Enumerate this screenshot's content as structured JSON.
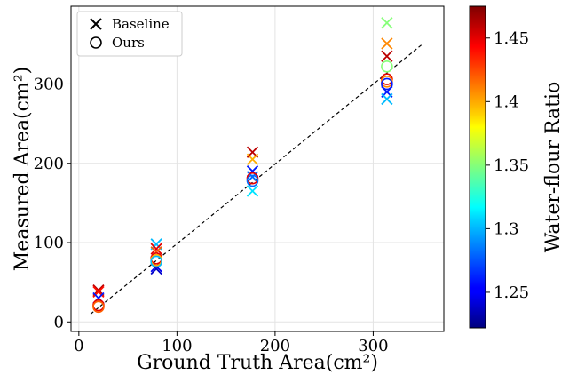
{
  "chart_data": {
    "type": "scatter",
    "xlabel": "Ground Truth Area(cm²)",
    "ylabel": "Measured Area(cm²)",
    "xlim": [
      -8,
      372
    ],
    "ylim": [
      -12,
      398
    ],
    "x_ticks": [
      0,
      100,
      200,
      300
    ],
    "y_ticks": [
      0,
      100,
      200,
      300
    ],
    "x_tick_labels": [
      "0",
      "100",
      "200",
      "300"
    ],
    "y_tick_labels": [
      "0",
      "100",
      "200",
      "300"
    ],
    "grid": true,
    "legend": {
      "placement": "top-left",
      "entries": [
        "Baseline",
        "Ours"
      ]
    },
    "reference_line": {
      "style": "dashed",
      "points": [
        [
          12,
          10
        ],
        [
          350,
          350
        ]
      ]
    },
    "colorbar": {
      "label": "Water-flour Ratio",
      "range": [
        1.222,
        1.475
      ],
      "ticks": [
        1.25,
        1.3,
        1.35,
        1.4,
        1.45
      ],
      "tick_labels": [
        "1.25",
        "1.3",
        "1.35",
        "1.4",
        "1.45"
      ],
      "colormap": "jet"
    },
    "series": [
      {
        "name": "Baseline",
        "marker": "x",
        "points": [
          {
            "x": 20,
            "y": 40,
            "c": 1.46
          },
          {
            "x": 20,
            "y": 38,
            "c": 1.44
          },
          {
            "x": 20,
            "y": 30,
            "c": 1.26
          },
          {
            "x": 79,
            "y": 98,
            "c": 1.3
          },
          {
            "x": 79,
            "y": 92,
            "c": 1.45
          },
          {
            "x": 79,
            "y": 88,
            "c": 1.42
          },
          {
            "x": 79,
            "y": 70,
            "c": 1.25
          },
          {
            "x": 79,
            "y": 67,
            "c": 1.24
          },
          {
            "x": 177,
            "y": 214,
            "c": 1.46
          },
          {
            "x": 177,
            "y": 205,
            "c": 1.4
          },
          {
            "x": 177,
            "y": 190,
            "c": 1.26
          },
          {
            "x": 177,
            "y": 183,
            "c": 1.28
          },
          {
            "x": 177,
            "y": 165,
            "c": 1.31
          },
          {
            "x": 314,
            "y": 377,
            "c": 1.35
          },
          {
            "x": 314,
            "y": 351,
            "c": 1.41
          },
          {
            "x": 314,
            "y": 335,
            "c": 1.46
          },
          {
            "x": 314,
            "y": 290,
            "c": 1.26
          },
          {
            "x": 314,
            "y": 281,
            "c": 1.3
          }
        ]
      },
      {
        "name": "Ours",
        "marker": "o",
        "points": [
          {
            "x": 20,
            "y": 21,
            "c": 1.45
          },
          {
            "x": 20,
            "y": 19,
            "c": 1.42
          },
          {
            "x": 79,
            "y": 80,
            "c": 1.45
          },
          {
            "x": 79,
            "y": 78,
            "c": 1.4
          },
          {
            "x": 79,
            "y": 76,
            "c": 1.3
          },
          {
            "x": 177,
            "y": 181,
            "c": 1.45
          },
          {
            "x": 177,
            "y": 178,
            "c": 1.28
          },
          {
            "x": 314,
            "y": 322,
            "c": 1.35
          },
          {
            "x": 314,
            "y": 306,
            "c": 1.45
          },
          {
            "x": 314,
            "y": 303,
            "c": 1.41
          },
          {
            "x": 314,
            "y": 300,
            "c": 1.26
          }
        ]
      }
    ]
  }
}
